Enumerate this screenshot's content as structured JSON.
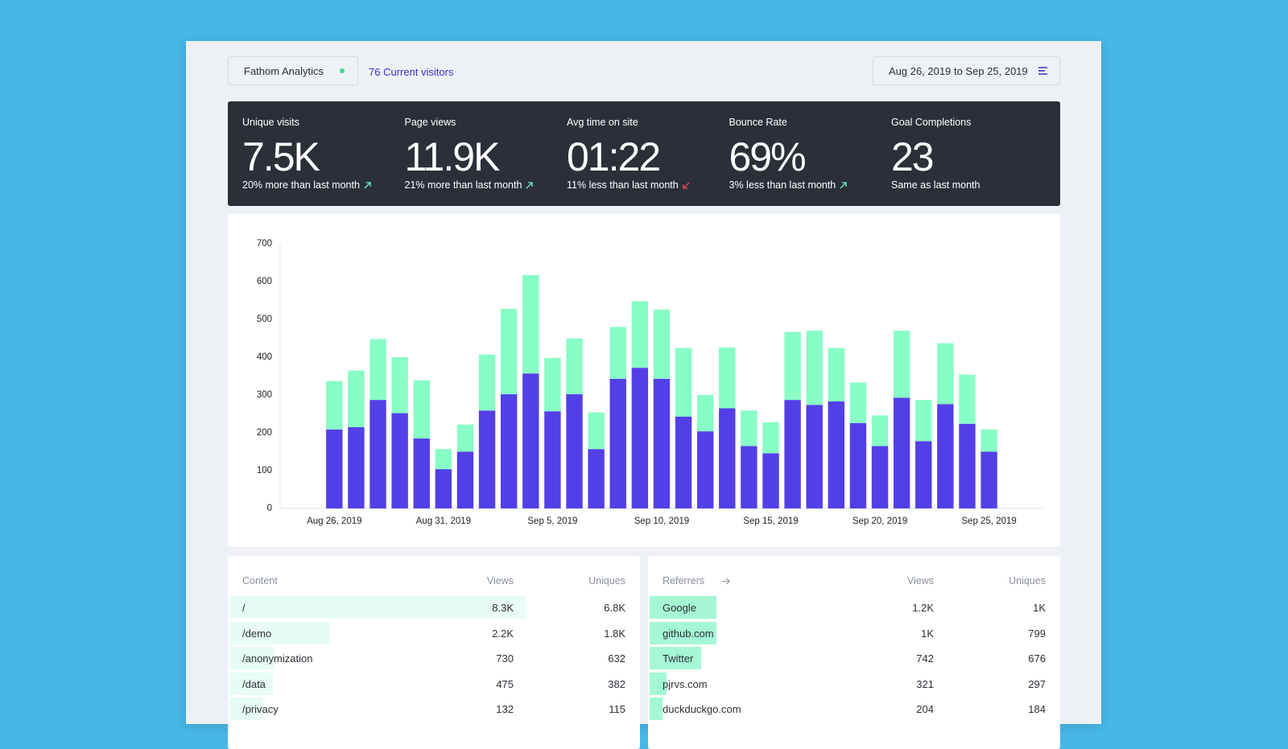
{
  "header": {
    "site": "Fathom Analytics",
    "visitors": "76 Current visitors",
    "date_range": "Aug 26, 2019 to Sep 25, 2019"
  },
  "stats": [
    {
      "label": "Unique visits",
      "value": "7.5K",
      "note": "20% more than last month"
    },
    {
      "label": "Page views",
      "value": "11.9K",
      "note": "21% more than last month"
    },
    {
      "label": "Avg time on site",
      "value": "01:22",
      "note": "11% less than last month"
    },
    {
      "label": "Bounce Rate",
      "value": "69%",
      "note": "3% less than last month"
    },
    {
      "label": "Goal Completions",
      "value": "23",
      "note": "Same as last month"
    }
  ],
  "chart_data": {
    "type": "stacked_bar",
    "categories": [
      "Aug 26, 2019",
      null,
      null,
      null,
      null,
      "Aug 31, 2019",
      null,
      null,
      null,
      null,
      "Sep 5, 2019",
      null,
      null,
      null,
      null,
      "Sep 10, 2019",
      null,
      null,
      null,
      null,
      "Sep 15, 2019",
      null,
      null,
      null,
      null,
      "Sep 20, 2019",
      null,
      null,
      null,
      null,
      "Sep 25, 2019"
    ],
    "series": [
      {
        "color": "#533fe7",
        "values": [
          209,
          215,
          287,
          252,
          185,
          104,
          150,
          259,
          302,
          357,
          257,
          302,
          157,
          343,
          372,
          343,
          243,
          204,
          265,
          165,
          146,
          287,
          274,
          283,
          226,
          165,
          293,
          178,
          276,
          224,
          150
        ]
      },
      {
        "color": "#88fdc6",
        "values": [
          128,
          150,
          161,
          148,
          154,
          53,
          72,
          148,
          226,
          260,
          141,
          148,
          97,
          137,
          176,
          183,
          181,
          96,
          161,
          94,
          82,
          180,
          196,
          141,
          107,
          81,
          177,
          109,
          161,
          130,
          59
        ]
      }
    ],
    "ylim": [
      0,
      700
    ],
    "yticks": [
      0,
      100,
      200,
      300,
      400,
      500,
      600,
      700
    ],
    "grid": false
  },
  "content_table": {
    "headers": [
      "Content",
      "Views",
      "Uniques"
    ],
    "rows": [
      [
        "/",
        "8.3K",
        "6.8K"
      ],
      [
        "/demo",
        "2.2K",
        "1.8K"
      ],
      [
        "/anonymization",
        "730",
        "632"
      ],
      [
        "/data",
        "475",
        "382"
      ],
      [
        "/privacy",
        "132",
        "115"
      ]
    ]
  },
  "referrers_table": {
    "headers": [
      "Referrers",
      "Views",
      "Uniques"
    ],
    "rows": [
      [
        "Google",
        "1.2K",
        "1K"
      ],
      [
        "github.com",
        "1K",
        "799"
      ],
      [
        "Twitter",
        "742",
        "676"
      ],
      [
        "pjrvs.com",
        "321",
        "297"
      ],
      [
        "duckduckgo.com",
        "204",
        "184"
      ]
    ]
  }
}
